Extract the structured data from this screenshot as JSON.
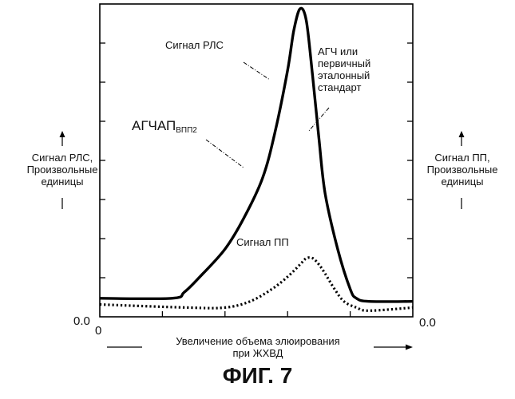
{
  "figure_caption": "ФИГ. 7",
  "chart_data": {
    "type": "line",
    "xlabel_line1": "Увеличение объема элюирования",
    "xlabel_line2": "при ЖХВД",
    "ylabel_left": "Сигнал РЛС,\nПроизвольные\nединицы",
    "ylabel_right": "Сигнал ПП,\nПроизвольные\nединицы",
    "y_zero_left": "0.0",
    "y_zero_right": "0.0",
    "x_zero": "0",
    "ylim": [
      0,
      1
    ],
    "xlim": [
      0,
      1
    ],
    "series": [
      {
        "name": "Сигнал РЛС",
        "style": "solid",
        "x": [
          0.0,
          0.23,
          0.27,
          0.32,
          0.4,
          0.46,
          0.52,
          0.56,
          0.6,
          0.62,
          0.64,
          0.66,
          0.68,
          0.7,
          0.72,
          0.76,
          0.8,
          0.82,
          0.86,
          1.0
        ],
        "y": [
          0.06,
          0.06,
          0.08,
          0.13,
          0.22,
          0.32,
          0.45,
          0.6,
          0.8,
          0.93,
          1.0,
          0.96,
          0.78,
          0.58,
          0.4,
          0.22,
          0.09,
          0.06,
          0.05,
          0.05
        ]
      },
      {
        "name": "Сигнал ПП",
        "style": "dotted",
        "x": [
          0.0,
          0.28,
          0.4,
          0.48,
          0.55,
          0.6,
          0.64,
          0.66,
          0.68,
          0.7,
          0.72,
          0.75,
          0.78,
          0.82,
          0.86,
          1.0
        ],
        "y": [
          0.04,
          0.03,
          0.03,
          0.05,
          0.09,
          0.13,
          0.17,
          0.19,
          0.19,
          0.17,
          0.14,
          0.09,
          0.05,
          0.03,
          0.02,
          0.03
        ]
      }
    ],
    "annotations": [
      {
        "text": "Сигнал РЛС"
      },
      {
        "text": "АГЧ или\nпервичный\nэталонный\nстандарт"
      },
      {
        "text": "АГЧАП",
        "subscript": "ВПП2"
      },
      {
        "text": "Сигнал ПП"
      }
    ]
  }
}
